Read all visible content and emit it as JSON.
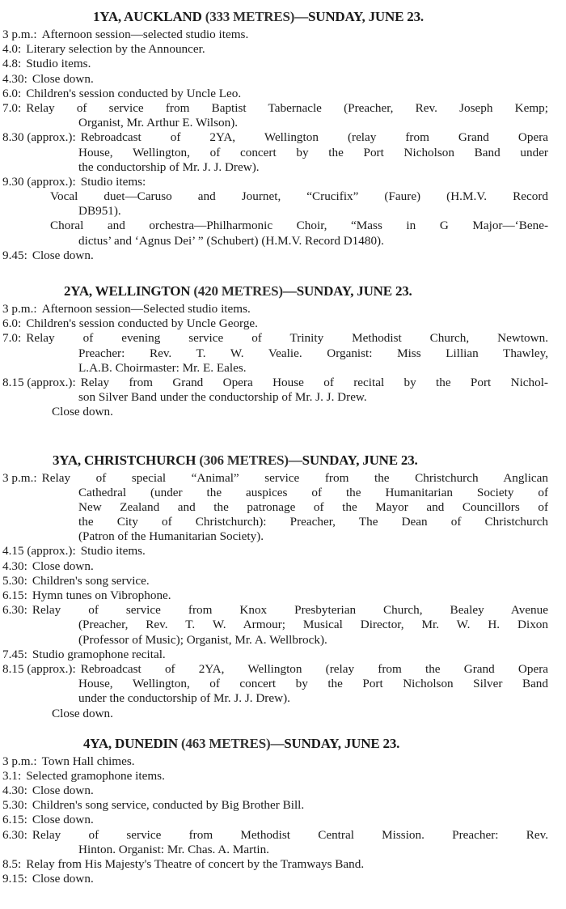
{
  "sections": [
    {
      "station": "1YA, AUCKLAND",
      "metres": "(333 METRES)",
      "day": "—SUNDAY, JUNE 23.",
      "entries": [
        {
          "time": "3 p.m.:",
          "lines": [
            "Afternoon session—selected studio items."
          ]
        },
        {
          "time": "4.0:",
          "lines": [
            "Literary selection by the Announcer."
          ]
        },
        {
          "time": "4.8:",
          "lines": [
            "Studio items."
          ]
        },
        {
          "time": "4.30:",
          "lines": [
            "Close down."
          ]
        },
        {
          "time": "6.0:",
          "lines": [
            "Children's session conducted by Uncle Leo."
          ]
        },
        {
          "time": "7.0:",
          "lines": [
            "Relay of service from Baptist Tabernacle (Preacher, Rev. Joseph Kemp;",
            "Organist, Mr. Arthur E. Wilson)."
          ]
        },
        {
          "time": "8.30 (approx.):",
          "lines": [
            "Rebroadcast of 2YA, Wellington (relay from Grand Opera",
            "House, Wellington, of concert by the Port Nicholson Band under",
            "the conductorship of Mr. J. J. Drew)."
          ]
        },
        {
          "time": "9.30 (approx.):",
          "lines": [
            "Studio items:"
          ]
        },
        {
          "time": "",
          "type": "sub",
          "lines": [
            "Vocal duet—Caruso and Journet, “Crucifix” (Faure) (H.M.V. Record",
            "DB951)."
          ]
        },
        {
          "time": "",
          "type": "sub",
          "lines": [
            "Choral and orchestra—Philharmonic Choir, “Mass in G Major—‘Bene-",
            "dictus’ and ‘Agnus Dei’ ” (Schubert) (H.M.V. Record D1480)."
          ]
        },
        {
          "time": "9.45:",
          "lines": [
            "Close down."
          ]
        }
      ]
    },
    {
      "station": "2YA, WELLINGTON",
      "metres": "(420 METRES)",
      "day": "—SUNDAY, JUNE 23.",
      "entries": [
        {
          "time": "3 p.m.:",
          "lines": [
            "Afternoon session—Selected studio items."
          ]
        },
        {
          "time": "6.0:",
          "lines": [
            "Children's session conducted by Uncle George."
          ]
        },
        {
          "time": "7.0:",
          "lines": [
            "Relay of evening service of Trinity Methodist Church, Newtown.",
            "Preacher: Rev. T. W. Vealie.   Organist: Miss Lillian Thawley,",
            "L.A.B.   Choirmaster: Mr. E. Eales."
          ]
        },
        {
          "time": "8.15 (approx.):",
          "lines": [
            "Relay from Grand Opera House of recital by the Port Nichol-",
            "son Silver Band under the conductorship of Mr. J. J. Drew."
          ]
        },
        {
          "time": "",
          "type": "closing",
          "lines": [
            "Close down."
          ]
        }
      ]
    },
    {
      "station": "3YA, CHRISTCHURCH",
      "metres": "(306 METRES)",
      "day": "—SUNDAY, JUNE 23.",
      "entries": [
        {
          "time": "3 p.m.:",
          "lines": [
            "Relay of special “Animal” service from the Christchurch Anglican",
            "Cathedral (under the auspices of the Humanitarian Society of",
            "New Zealand and the patronage of the Mayor and Councillors of",
            "the City of Christchurch): Preacher, The Dean of Christchurch",
            "(Patron of the Humanitarian Society)."
          ]
        },
        {
          "time": "4.15 (approx.):",
          "lines": [
            "Studio items."
          ]
        },
        {
          "time": "4.30:",
          "lines": [
            "Close down."
          ]
        },
        {
          "time": "5.30:",
          "lines": [
            "Children's song service."
          ]
        },
        {
          "time": "6.15:",
          "lines": [
            "Hymn tunes on Vibrophone."
          ]
        },
        {
          "time": "6.30:",
          "lines": [
            "Relay of service from Knox Presbyterian Church, Bealey Avenue",
            "(Preacher, Rev. T. W. Armour; Musical Director, Mr. W. H. Dixon",
            "(Professor of Music); Organist, Mr. A. Wellbrock)."
          ]
        },
        {
          "time": "7.45:",
          "lines": [
            "Studio gramophone recital."
          ]
        },
        {
          "time": "8.15 (approx.):",
          "lines": [
            "Rebroadcast of 2YA, Wellington (relay from the Grand Opera",
            "House, Wellington, of concert by the Port Nicholson Silver Band",
            "under the conductorship of Mr. J. J. Drew)."
          ]
        },
        {
          "time": "",
          "type": "closing",
          "lines": [
            "Close down."
          ]
        }
      ]
    },
    {
      "station": "4YA, DUNEDIN",
      "metres": "(463 METRES)",
      "day": "—SUNDAY, JUNE 23.",
      "entries": [
        {
          "time": "3 p.m.:",
          "lines": [
            "Town Hall chimes."
          ]
        },
        {
          "time": "3.1:",
          "lines": [
            "Selected gramophone items."
          ]
        },
        {
          "time": "4.30:",
          "lines": [
            "Close down."
          ]
        },
        {
          "time": "5.30:",
          "lines": [
            "Children's song service, conducted by Big Brother Bill."
          ]
        },
        {
          "time": "6.15:",
          "lines": [
            "Close down."
          ]
        },
        {
          "time": "6.30:",
          "lines": [
            "Relay of service from Methodist Central Mission.   Preacher: Rev.",
            "Hinton.   Organist: Mr. Chas. A. Martin."
          ]
        },
        {
          "time": "8.5:",
          "lines": [
            "Relay from His Majesty's Theatre of concert by the Tramways Band."
          ]
        },
        {
          "time": "9.15:",
          "lines": [
            "Close down."
          ]
        }
      ]
    }
  ]
}
